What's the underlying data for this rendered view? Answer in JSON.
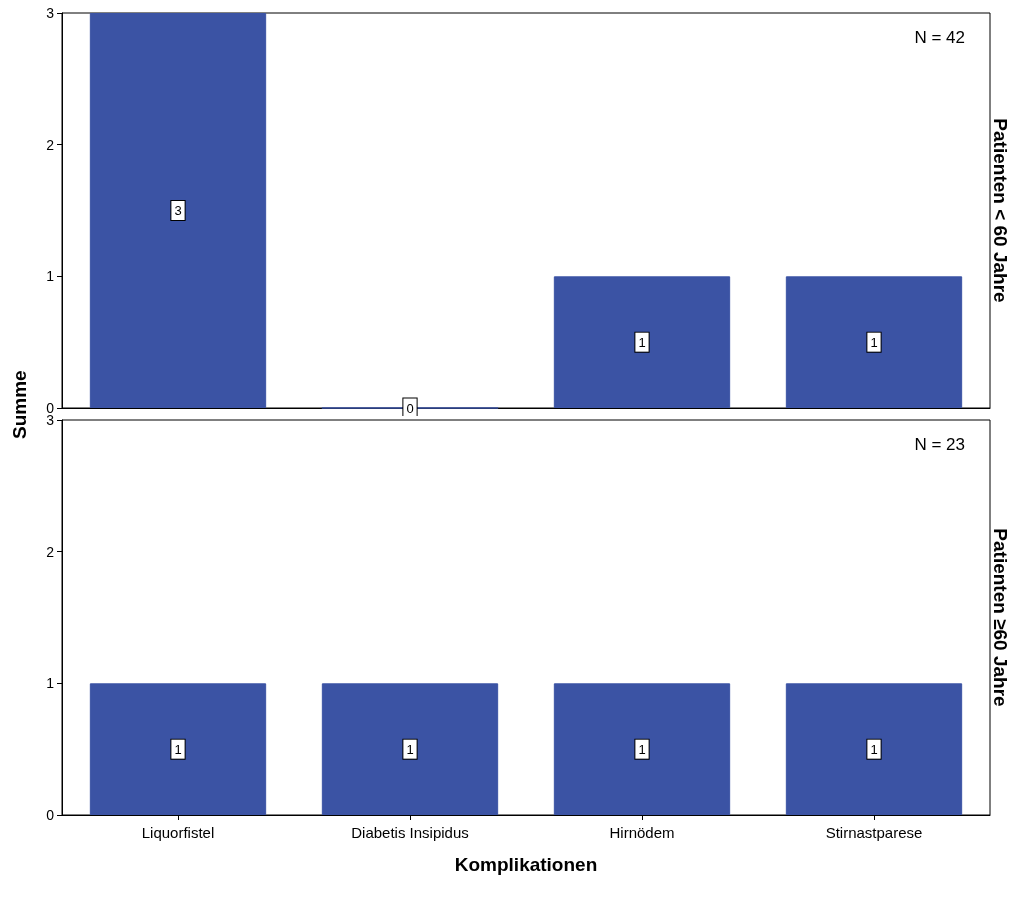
{
  "chart_data": [
    {
      "type": "bar",
      "title": "Patienten < 60 Jahre",
      "ylabel": "Summe",
      "categories": [
        null,
        null,
        null,
        null
      ],
      "values": [
        3,
        0,
        1,
        1
      ],
      "color": "#3b53a4",
      "ylim": [
        0,
        3
      ],
      "yticks": [
        0,
        1,
        2,
        3
      ],
      "data_labels": true,
      "grid": false,
      "tick_labels": "y",
      "annotations": [
        "N = 42"
      ]
    },
    {
      "type": "bar",
      "title": "Patienten ≥60 Jahre",
      "xlabel": "Komplikationen",
      "categories": [
        "Liquorfistel",
        "Diabetis Insipidus",
        "Hirnödem",
        "Stirnastparese"
      ],
      "values": [
        1,
        1,
        1,
        1
      ],
      "color": "#3b53a4",
      "ylim": [
        0,
        3
      ],
      "yticks": [
        0,
        1,
        2,
        3
      ],
      "data_labels": true,
      "grid": false,
      "annotations": [
        "N = 23"
      ]
    }
  ]
}
